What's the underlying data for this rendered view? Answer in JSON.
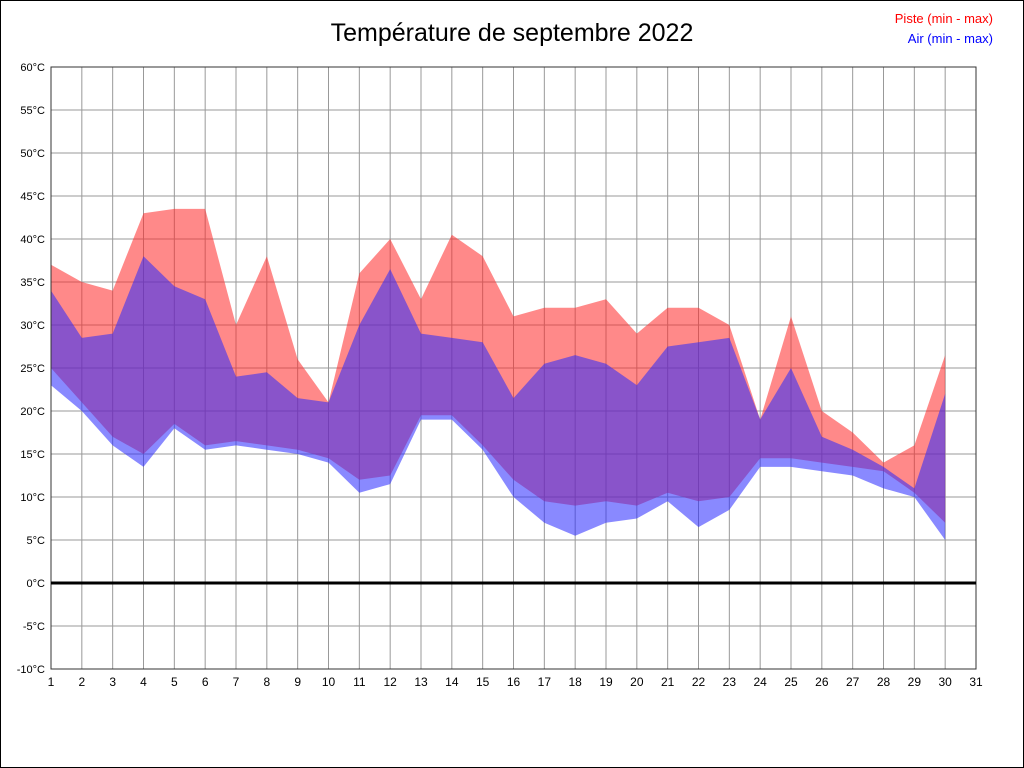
{
  "title": "Température de septembre 2022",
  "legend": [
    {
      "label": "Piste (min - max)",
      "color": "#ff0000"
    },
    {
      "label": "Air (min - max)",
      "color": "#0000ff"
    }
  ],
  "chart_data": {
    "type": "area",
    "title": "Température de septembre 2022",
    "xlabel": "",
    "ylabel": "",
    "xlim": [
      1,
      31
    ],
    "ylim": [
      -10,
      60
    ],
    "grid": true,
    "zero_line": true,
    "legend_position": "top-right",
    "x_ticks": [
      1,
      2,
      3,
      4,
      5,
      6,
      7,
      8,
      9,
      10,
      11,
      12,
      13,
      14,
      15,
      16,
      17,
      18,
      19,
      20,
      21,
      22,
      23,
      24,
      25,
      26,
      27,
      28,
      29,
      30,
      31
    ],
    "y_ticks": [
      -10,
      -5,
      0,
      5,
      10,
      15,
      20,
      25,
      30,
      35,
      40,
      45,
      50,
      55,
      60
    ],
    "y_tick_suffix": "°C",
    "x": [
      1,
      2,
      3,
      4,
      5,
      6,
      7,
      8,
      9,
      10,
      11,
      12,
      13,
      14,
      15,
      16,
      17,
      18,
      19,
      20,
      21,
      22,
      23,
      24,
      25,
      26,
      27,
      28,
      29,
      30
    ],
    "series": [
      {
        "name": "Piste (min - max)",
        "color": "rgb(255,40,40)",
        "opacity": 0.55,
        "max": [
          37,
          35,
          34,
          43,
          43.5,
          43.5,
          30,
          38,
          26,
          21,
          36,
          40,
          33,
          40.5,
          38,
          31,
          32,
          32,
          33,
          29,
          32,
          32,
          30,
          19,
          31,
          20,
          17.5,
          14,
          16,
          26.5
        ],
        "min": [
          25,
          21,
          17,
          15,
          18.5,
          16,
          16.5,
          16,
          15.5,
          14.5,
          12,
          12.5,
          19.5,
          19.5,
          16,
          12,
          9.5,
          9,
          9.5,
          9,
          10.5,
          9.5,
          10,
          14.5,
          14.5,
          14,
          13.5,
          13,
          10.5,
          7
        ]
      },
      {
        "name": "Air (min - max)",
        "color": "rgb(40,40,255)",
        "opacity": 0.55,
        "max": [
          34,
          28.5,
          29,
          38,
          34.5,
          33,
          24,
          24.5,
          21.5,
          21,
          30,
          36.5,
          29,
          28.5,
          28,
          21.5,
          25.5,
          26.5,
          25.5,
          23,
          27.5,
          28,
          28.5,
          19,
          25,
          17,
          15.5,
          13.5,
          11,
          22
        ],
        "min": [
          23,
          20,
          16,
          13.5,
          18,
          15.5,
          16,
          15.5,
          15,
          14,
          10.5,
          11.5,
          19,
          19,
          15.5,
          10,
          7,
          5.5,
          7,
          7.5,
          9.5,
          6.5,
          8.5,
          13.5,
          13.5,
          13,
          12.5,
          11,
          10,
          5
        ]
      }
    ]
  }
}
